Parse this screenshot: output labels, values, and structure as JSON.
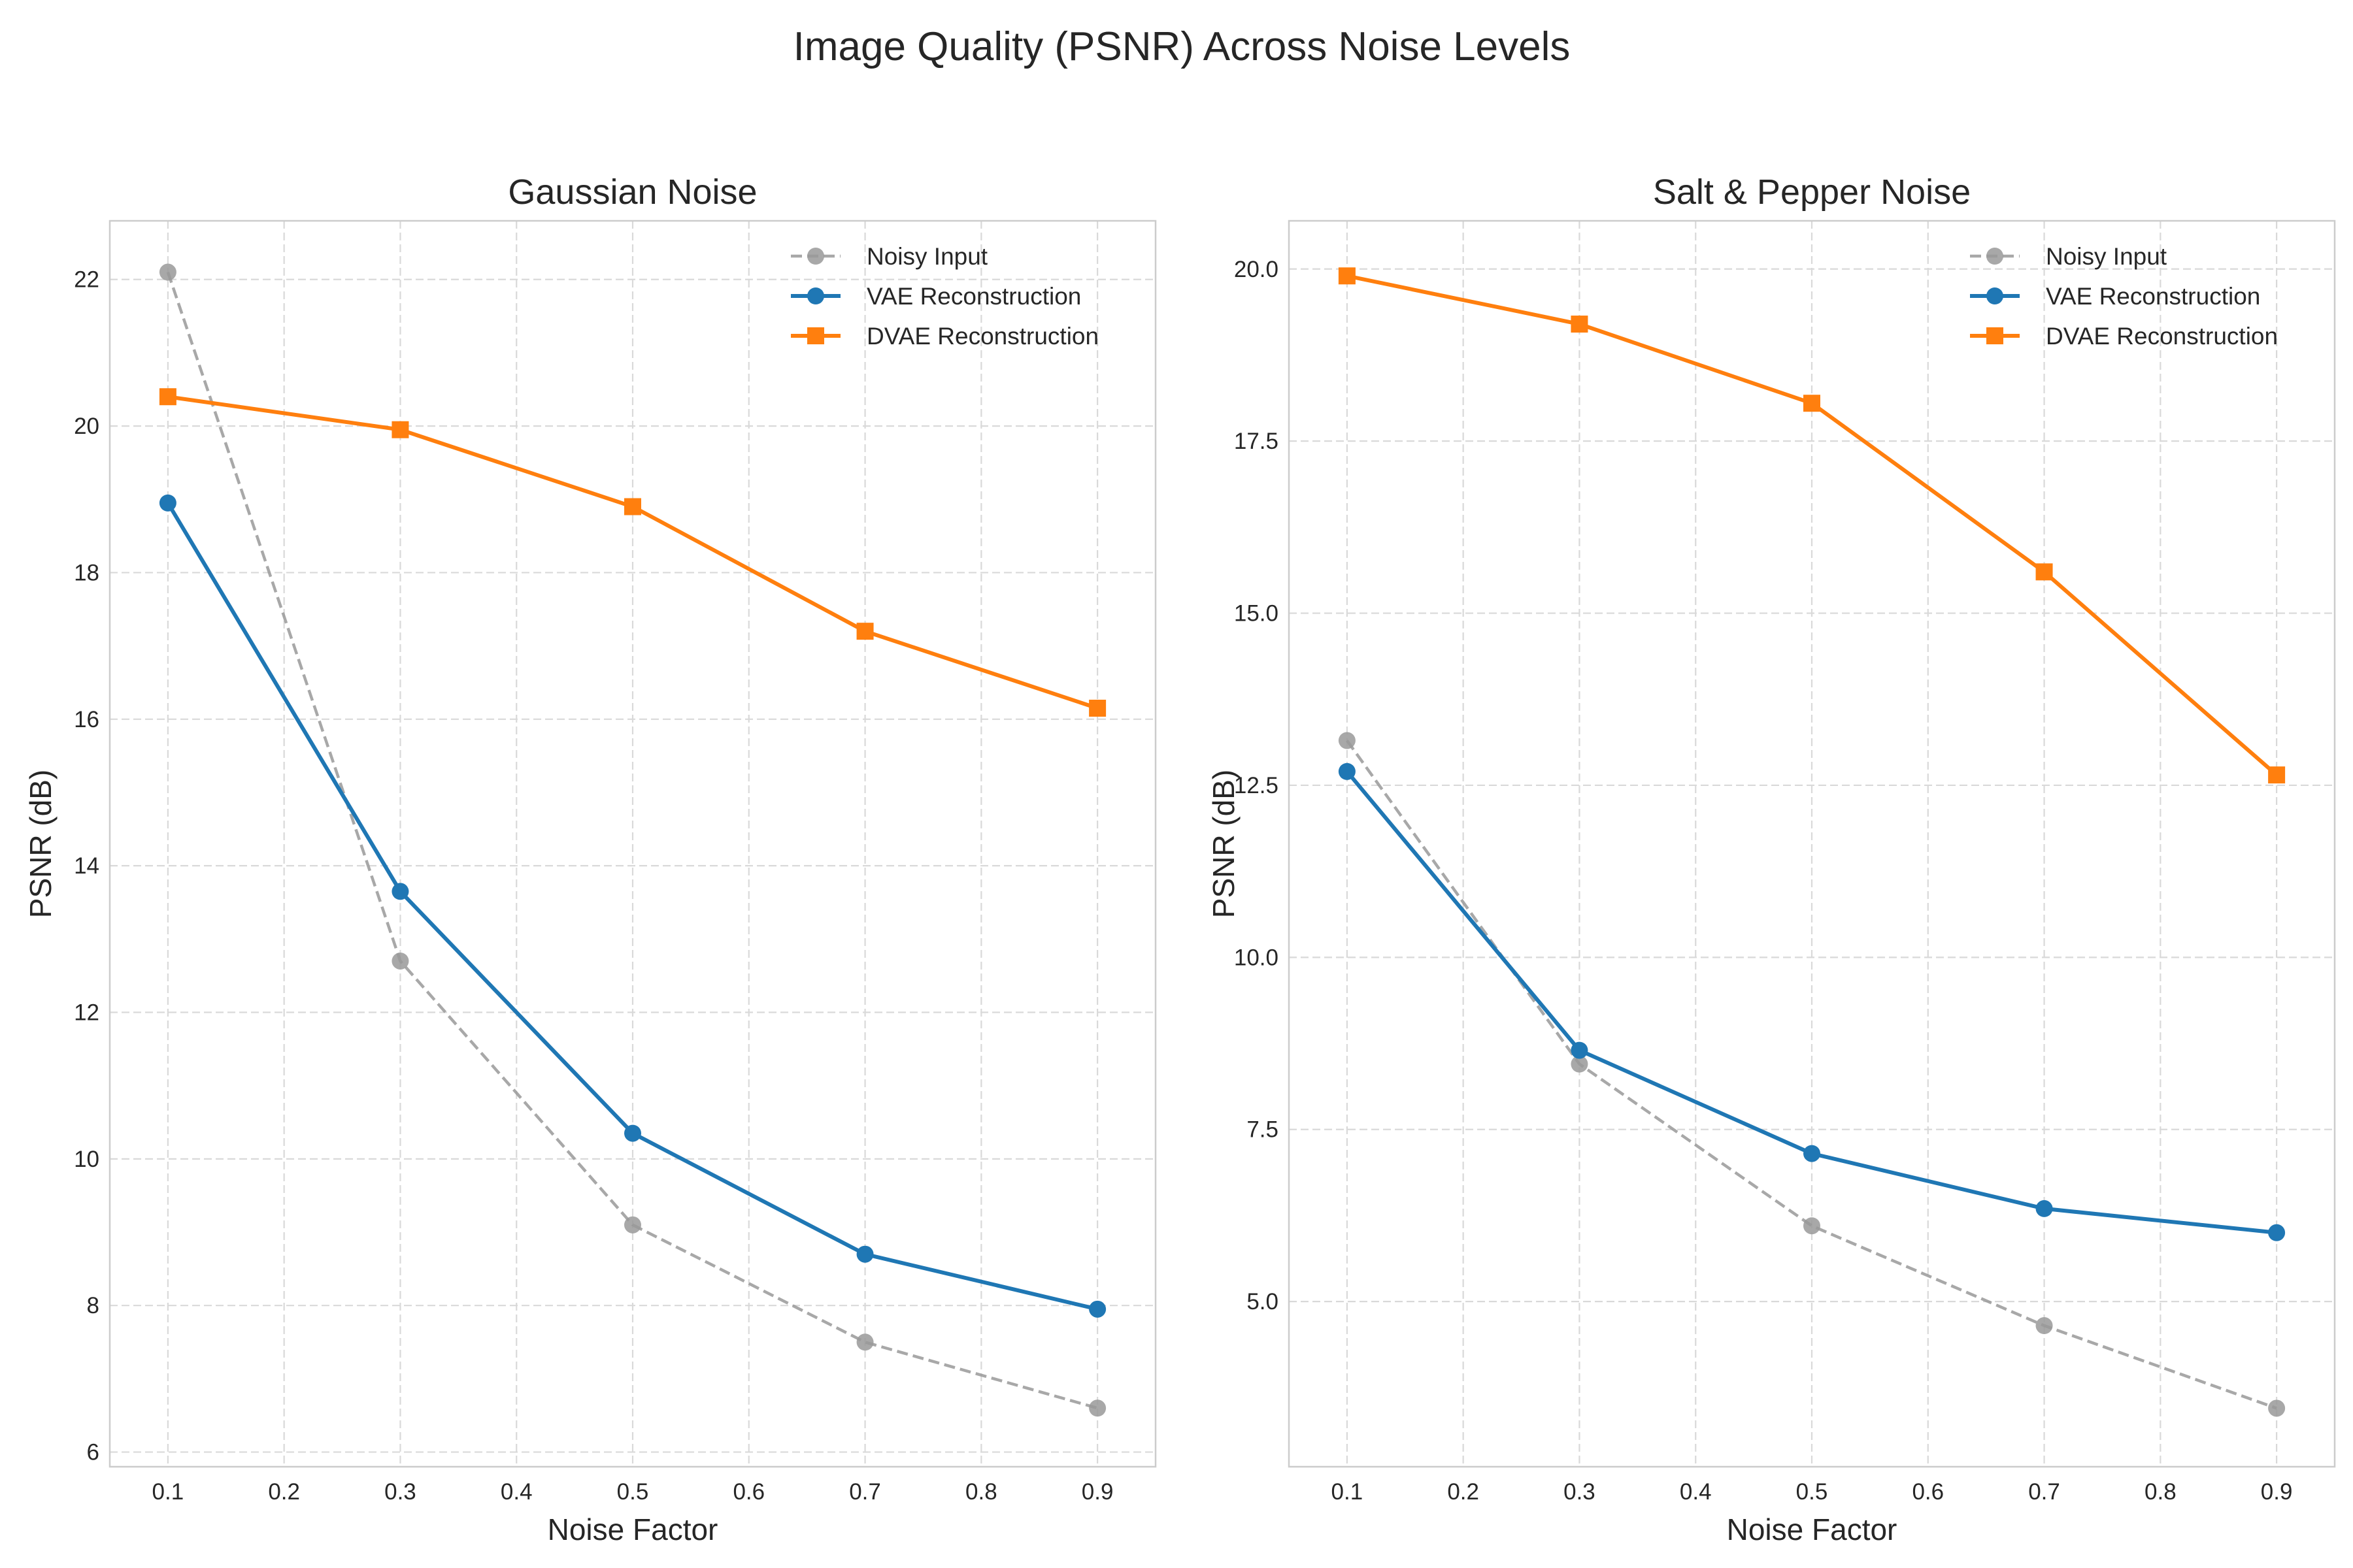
{
  "figure": {
    "title": "Image Quality (PSNR) Across Noise Levels"
  },
  "chart_data": [
    {
      "type": "line",
      "title": "Gaussian Noise",
      "xlabel": "Noise Factor",
      "ylabel": "PSNR (dB)",
      "xlim": [
        0.05,
        0.95
      ],
      "ylim": [
        5.8,
        22.8
      ],
      "xticks": [
        0.1,
        0.2,
        0.3,
        0.4,
        0.5,
        0.6,
        0.7,
        0.8,
        0.9
      ],
      "xtick_labels": [
        "0.1",
        "0.2",
        "0.3",
        "0.4",
        "0.5",
        "0.6",
        "0.7",
        "0.8",
        "0.9"
      ],
      "yticks": [
        6,
        8,
        10,
        12,
        14,
        16,
        18,
        20,
        22
      ],
      "ytick_labels": [
        "6",
        "8",
        "10",
        "12",
        "14",
        "16",
        "18",
        "20",
        "22"
      ],
      "grid": true,
      "legend_position": "top-right",
      "x": [
        0.1,
        0.3,
        0.5,
        0.7,
        0.9
      ],
      "series": [
        {
          "name": "Noisy Input",
          "values": [
            22.1,
            12.7,
            9.1,
            7.5,
            6.6
          ],
          "color": "#999999",
          "marker": "circle",
          "line_style": "dashed"
        },
        {
          "name": "VAE Reconstruction",
          "values": [
            18.95,
            13.65,
            10.35,
            8.7,
            7.95
          ],
          "color": "#1f77b4",
          "marker": "circle",
          "line_style": "solid"
        },
        {
          "name": "DVAE Reconstruction",
          "values": [
            20.4,
            19.95,
            18.9,
            17.2,
            16.15
          ],
          "color": "#ff7f0e",
          "marker": "square",
          "line_style": "solid"
        }
      ]
    },
    {
      "type": "line",
      "title": "Salt & Pepper Noise",
      "xlabel": "Noise Factor",
      "ylabel": "PSNR (dB)",
      "xlim": [
        0.05,
        0.95
      ],
      "ylim": [
        2.6,
        20.7
      ],
      "xticks": [
        0.1,
        0.2,
        0.3,
        0.4,
        0.5,
        0.6,
        0.7,
        0.8,
        0.9
      ],
      "xtick_labels": [
        "0.1",
        "0.2",
        "0.3",
        "0.4",
        "0.5",
        "0.6",
        "0.7",
        "0.8",
        "0.9"
      ],
      "yticks": [
        5.0,
        7.5,
        10.0,
        12.5,
        15.0,
        17.5,
        20.0
      ],
      "ytick_labels": [
        "5.0",
        "7.5",
        "10.0",
        "12.5",
        "15.0",
        "17.5",
        "20.0"
      ],
      "grid": true,
      "legend_position": "top-right",
      "x": [
        0.1,
        0.3,
        0.5,
        0.7,
        0.9
      ],
      "series": [
        {
          "name": "Noisy Input",
          "values": [
            13.15,
            8.45,
            6.1,
            4.65,
            3.45
          ],
          "color": "#999999",
          "marker": "circle",
          "line_style": "dashed"
        },
        {
          "name": "VAE Reconstruction",
          "values": [
            12.7,
            8.65,
            7.15,
            6.35,
            6.0
          ],
          "color": "#1f77b4",
          "marker": "circle",
          "line_style": "solid"
        },
        {
          "name": "DVAE Reconstruction",
          "values": [
            19.9,
            19.2,
            18.05,
            15.6,
            12.65
          ],
          "color": "#ff7f0e",
          "marker": "square",
          "line_style": "solid"
        }
      ]
    }
  ]
}
